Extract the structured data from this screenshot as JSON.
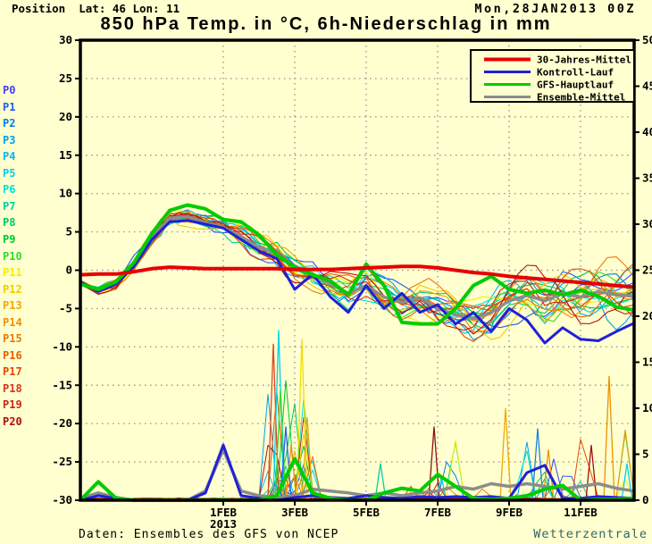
{
  "header": {
    "position_label": "Position  Lat: 46 Lon: 11",
    "datetime": "Mon,28JAN2013 00Z"
  },
  "footer": {
    "source": "Daten: Ensembles des GFS von NCEP",
    "brand": "Wetterzentrale",
    "brand_color": "#336666"
  },
  "chart_data": {
    "type": "line",
    "title": "850 hPa Temp. in °C, 6h-Niederschlag in mm",
    "background": "#ffffd0",
    "grid_color": "#999999",
    "grid_on": true,
    "legend_position": "top-right",
    "legend": [
      {
        "label": "30-Jahres-Mittel",
        "color": "#e60000"
      },
      {
        "label": "Kontroll-Lauf",
        "color": "#2020d8"
      },
      {
        "label": "GFS-Hauptlauf",
        "color": "#00cc00"
      },
      {
        "label": "Ensemble-Mittel",
        "color": "#8c8c8c"
      }
    ],
    "y_left": {
      "unit": "°C",
      "min": -30,
      "max": 30,
      "step": 5,
      "ticks": [
        30,
        25,
        20,
        15,
        10,
        5,
        0,
        -5,
        -10,
        -15,
        -20,
        -25,
        -30
      ]
    },
    "y_right": {
      "unit": "mm",
      "min": 0,
      "max": 50,
      "step": 5,
      "ticks": [
        50,
        45,
        40,
        35,
        30,
        25,
        20,
        15,
        10,
        5,
        0
      ]
    },
    "x_range_days": [
      0,
      15.5
    ],
    "x_start": "28JAN2013 00Z",
    "x_ticks": [
      {
        "day": 4,
        "label": "1FEB",
        "sub": "2013"
      },
      {
        "day": 6,
        "label": "3FEB"
      },
      {
        "day": 8,
        "label": "5FEB"
      },
      {
        "day": 10,
        "label": "7FEB"
      },
      {
        "day": 12,
        "label": "9FEB"
      },
      {
        "day": 14,
        "label": "11FEB"
      }
    ],
    "days": [
      0,
      0.5,
      1,
      1.5,
      2,
      2.5,
      3,
      3.5,
      4,
      4.5,
      5,
      5.5,
      6,
      6.5,
      7,
      7.5,
      8,
      8.5,
      9,
      9.5,
      10,
      10.5,
      11,
      11.5,
      12,
      12.5,
      13,
      13.5,
      14,
      14.5,
      15,
      15.5
    ],
    "series": [
      {
        "name": "30-Jahres-Mittel",
        "axis": "left",
        "color": "#e60000",
        "width": 4,
        "y": [
          -0.6,
          -0.5,
          -0.5,
          -0.2,
          0.2,
          0.4,
          0.3,
          0.2,
          0.2,
          0.2,
          0.2,
          0.2,
          0.1,
          0.1,
          0.1,
          0.2,
          0.3,
          0.4,
          0.5,
          0.5,
          0.3,
          0,
          -0.3,
          -0.5,
          -0.8,
          -1,
          -1.2,
          -1.4,
          -1.6,
          -1.8,
          -2,
          -2.2
        ]
      },
      {
        "name": "Kontroll-Lauf",
        "axis": "left",
        "color": "#2020d8",
        "width": 3,
        "y": [
          -1.5,
          -2.8,
          -1.8,
          0.5,
          4,
          6.3,
          6.5,
          6,
          5.5,
          4,
          2.5,
          1.5,
          -2.5,
          -0.5,
          -3.5,
          -5.5,
          -2,
          -5,
          -3,
          -5.5,
          -4.5,
          -7,
          -5.5,
          -8,
          -5,
          -6.5,
          -9.5,
          -7.5,
          -9,
          -9.2,
          -8,
          -6.9
        ]
      },
      {
        "name": "GFS-Hauptlauf",
        "axis": "left",
        "color": "#00cc00",
        "width": 4,
        "y": [
          -1.8,
          -2.5,
          -1.5,
          1,
          4.8,
          7.8,
          8.5,
          8,
          6.6,
          6.3,
          4.6,
          2,
          0.4,
          -0.6,
          -1.4,
          -3.2,
          0.8,
          -2,
          -6.8,
          -7,
          -7,
          -5,
          -2,
          -0.8,
          -2.5,
          -3,
          -2.6,
          -3.2,
          -2.6,
          -3.4,
          -4.8,
          -5.2
        ]
      },
      {
        "name": "Ensemble-Mittel",
        "axis": "left",
        "color": "#8c8c8c",
        "width": 3.5,
        "y": [
          -1.6,
          -2.6,
          -1.7,
          0.8,
          4.2,
          6.8,
          7,
          6.2,
          5.6,
          4.4,
          3,
          2.2,
          0.5,
          -0.5,
          -1.8,
          -3,
          -2,
          -3.5,
          -4.2,
          -3.6,
          -5,
          -5.8,
          -6.3,
          -5.5,
          -4,
          -3.3,
          -4,
          -3,
          -3.5,
          -2.8,
          -3.2,
          -3.4
        ]
      },
      {
        "name": "GFS-Hauptlauf Niederschlag",
        "axis": "right",
        "color": "#00cc00",
        "width": 4,
        "y": [
          0,
          2,
          0.2,
          0,
          0,
          0,
          0,
          0,
          0,
          0,
          0,
          0.5,
          4.5,
          0.8,
          0.2,
          0,
          0,
          0.8,
          1.3,
          1,
          2.8,
          1.5,
          0.2,
          0.1,
          0.2,
          0.5,
          1.2,
          1.6,
          0,
          0.1,
          0.1,
          0.2
        ]
      },
      {
        "name": "Ensemble-Mittel Niederschlag",
        "axis": "right",
        "color": "#8c8c8c",
        "width": 3.5,
        "y": [
          0.2,
          0.8,
          0.3,
          0,
          0,
          0,
          0,
          1,
          5.5,
          1,
          0.5,
          0.3,
          0.5,
          1.2,
          1,
          0.8,
          0.5,
          0.8,
          0.5,
          0.8,
          1,
          1.5,
          1.2,
          1.8,
          1.5,
          1.8,
          1.5,
          1.2,
          1.5,
          1.8,
          1.3,
          1
        ]
      },
      {
        "name": "Kontroll-Lauf Niederschlag",
        "axis": "right",
        "color": "#2020d8",
        "width": 3,
        "y": [
          0,
          0.5,
          0.2,
          0,
          0,
          0,
          0,
          0.8,
          6,
          0.5,
          0.2,
          0,
          0.3,
          0.5,
          0.3,
          0.2,
          0.5,
          0.3,
          0.2,
          0.4,
          0.3,
          0.4,
          0.3,
          0.4,
          0.2,
          3,
          3.8,
          0.2,
          0.2,
          0.4,
          0.3,
          0.2
        ]
      }
    ],
    "precip_spikes": [
      {
        "day": 5.4,
        "mm": 17,
        "color": "#d84820"
      },
      {
        "day": 5.55,
        "mm": 18.5,
        "color": "#00d0f0"
      },
      {
        "day": 5.6,
        "mm": 12,
        "color": "#30dc30"
      },
      {
        "day": 5.75,
        "mm": 8,
        "color": "#2060f0"
      },
      {
        "day": 5.9,
        "mm": 6,
        "color": "#f09000"
      },
      {
        "day": 6.2,
        "mm": 17.5,
        "color": "#f0e000"
      },
      {
        "day": 6.35,
        "mm": 9,
        "color": "#f0a800"
      },
      {
        "day": 8.4,
        "mm": 4,
        "color": "#00d0a0"
      },
      {
        "day": 9.9,
        "mm": 8,
        "color": "#8c1010"
      },
      {
        "day": 10.1,
        "mm": 2.5,
        "color": "#00d0f0"
      },
      {
        "day": 11.9,
        "mm": 10,
        "color": "#f0a800"
      },
      {
        "day": 12.8,
        "mm": 7.8,
        "color": "#2080e0"
      },
      {
        "day": 13.1,
        "mm": 5.5,
        "color": "#f09000"
      },
      {
        "day": 14.3,
        "mm": 6,
        "color": "#a01010"
      },
      {
        "day": 14.8,
        "mm": 13.5,
        "color": "#f09000"
      },
      {
        "day": 15.3,
        "mm": 4,
        "color": "#00d0f0"
      }
    ],
    "members": [
      {
        "label": "P0",
        "color": "#4040ff"
      },
      {
        "label": "P1",
        "color": "#2060f0"
      },
      {
        "label": "P2",
        "color": "#0080f0"
      },
      {
        "label": "P3",
        "color": "#00a0f0"
      },
      {
        "label": "P4",
        "color": "#00b8f0"
      },
      {
        "label": "P5",
        "color": "#00d0f0"
      },
      {
        "label": "P6",
        "color": "#00e0d0"
      },
      {
        "label": "P7",
        "color": "#00d0a0"
      },
      {
        "label": "P8",
        "color": "#00c864"
      },
      {
        "label": "P9",
        "color": "#00c830"
      },
      {
        "label": "P10",
        "color": "#30dc30"
      },
      {
        "label": "P11",
        "color": "#f0f000"
      },
      {
        "label": "P12",
        "color": "#f0cc00"
      },
      {
        "label": "P13",
        "color": "#f0a800"
      },
      {
        "label": "P14",
        "color": "#f09000"
      },
      {
        "label": "P15",
        "color": "#f07800"
      },
      {
        "label": "P16",
        "color": "#e66000"
      },
      {
        "label": "P17",
        "color": "#e64800"
      },
      {
        "label": "P18",
        "color": "#d83820"
      },
      {
        "label": "P19",
        "color": "#c82815"
      },
      {
        "label": "P20",
        "color": "#b01010"
      }
    ]
  }
}
